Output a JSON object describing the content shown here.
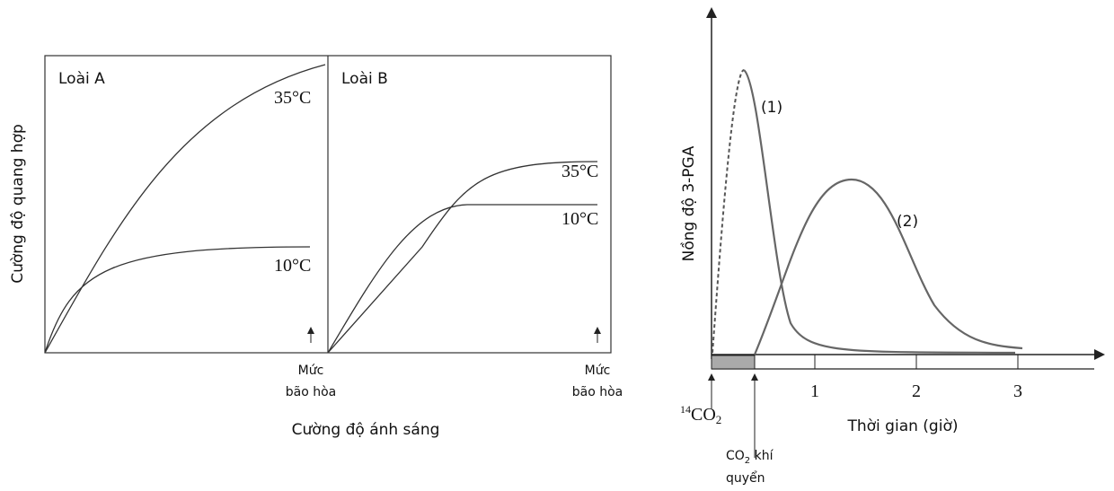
{
  "left_figure": {
    "y_label": "Cường độ quang hợp",
    "x_label": "Cường độ ánh sáng",
    "panels": [
      {
        "label": "Loài A",
        "curves": [
          {
            "label": "35°C"
          },
          {
            "label": "10°C"
          }
        ],
        "marker": [
          "Mức",
          "bão hòa"
        ]
      },
      {
        "label": "Loài B",
        "curves": [
          {
            "label": "35°C"
          },
          {
            "label": "10°C"
          }
        ],
        "marker": [
          "Mức",
          "bão hòa"
        ]
      }
    ]
  },
  "right_figure": {
    "y_label": "Nồng độ 3-PGA",
    "x_label": "Thời gian (giờ)",
    "x_ticks": [
      "1",
      "2",
      "3"
    ],
    "curves": [
      {
        "label": "(1)"
      },
      {
        "label": "(2)"
      }
    ],
    "start_label": {
      "sup": "14",
      "main": "CO",
      "sub": "2"
    },
    "air_label": {
      "main": "CO",
      "sub": "2",
      "rest": " khí",
      "line2": "quyển"
    }
  }
}
